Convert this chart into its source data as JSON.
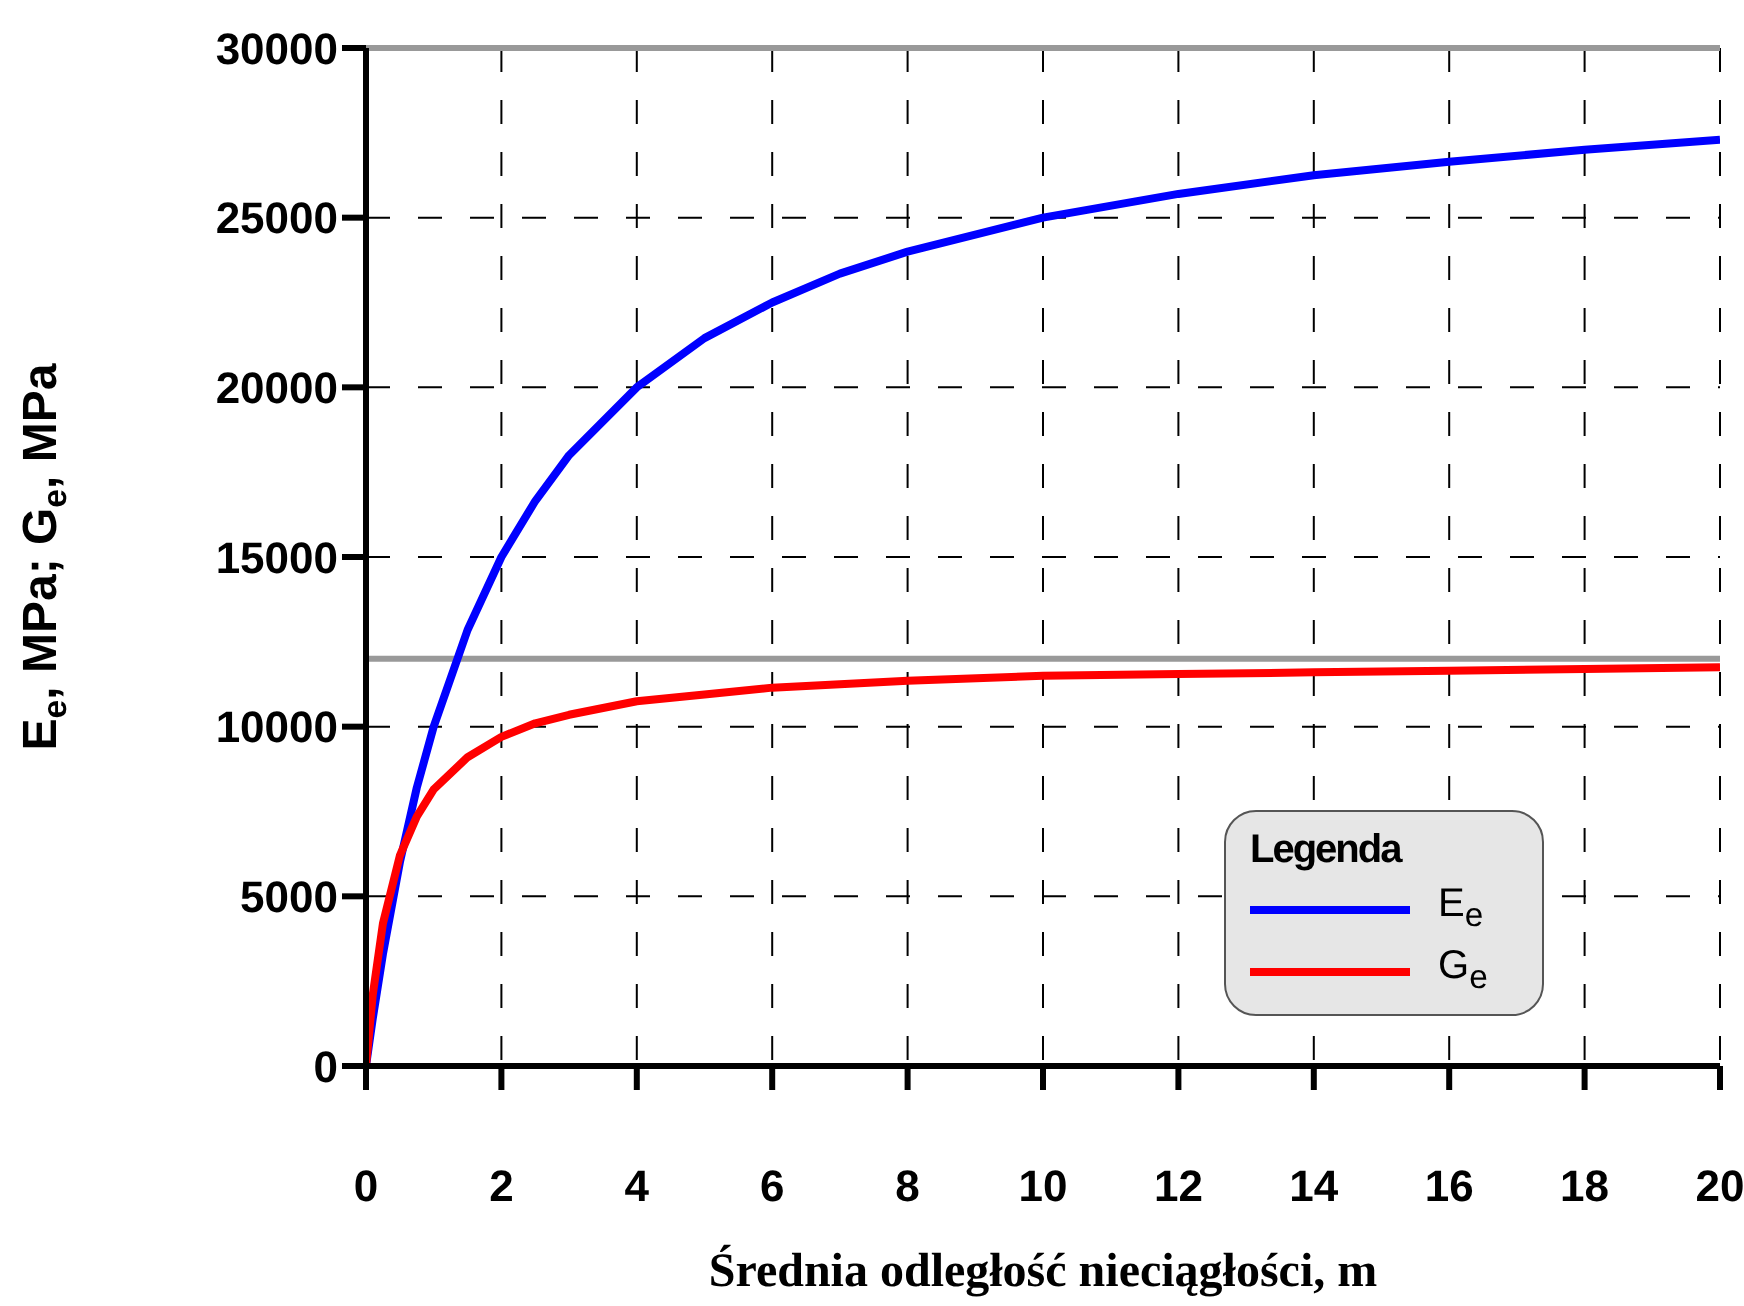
{
  "chart_data": {
    "type": "line",
    "xlabel": "Średnia odległość nieciągłości, m",
    "ylabel": "E$_{e}$, MPa; G$_{e}$, MPa",
    "legend_title": "Legenda",
    "x": [
      0,
      0.1,
      0.25,
      0.5,
      0.75,
      1,
      1.5,
      2,
      2.5,
      3,
      4,
      5,
      6,
      7,
      8,
      10,
      12,
      14,
      16,
      18,
      20
    ],
    "series": [
      {
        "name": "E$_{e}$",
        "color": "#0000ff",
        "values": [
          0,
          1400,
          3300,
          6000,
          8200,
          10000,
          12850,
          15000,
          16650,
          18000,
          20000,
          21450,
          22500,
          23350,
          24000,
          25000,
          25700,
          26250,
          26650,
          27000,
          27300
        ]
      },
      {
        "name": "G$_{e}$",
        "color": "#ff0000",
        "values": [
          0,
          2100,
          4200,
          6200,
          7350,
          8150,
          9100,
          9700,
          10100,
          10350,
          10750,
          10950,
          11150,
          11250,
          11350,
          11500,
          11550,
          11600,
          11650,
          11700,
          11750
        ]
      }
    ],
    "xlim": [
      0,
      20
    ],
    "xticks": [
      0,
      2,
      4,
      6,
      8,
      10,
      12,
      14,
      16,
      18,
      20
    ],
    "ylim": [
      0,
      30000
    ],
    "yticks": [
      0,
      5000,
      10000,
      15000,
      20000,
      25000,
      30000
    ],
    "ref_lines": [
      {
        "axis": "y",
        "value": 30000,
        "color": "#999999"
      },
      {
        "axis": "y",
        "value": 12000,
        "color": "#999999"
      }
    ],
    "grid": true,
    "legend": "bottom right",
    "marker": "none",
    "line_style": "solid"
  }
}
